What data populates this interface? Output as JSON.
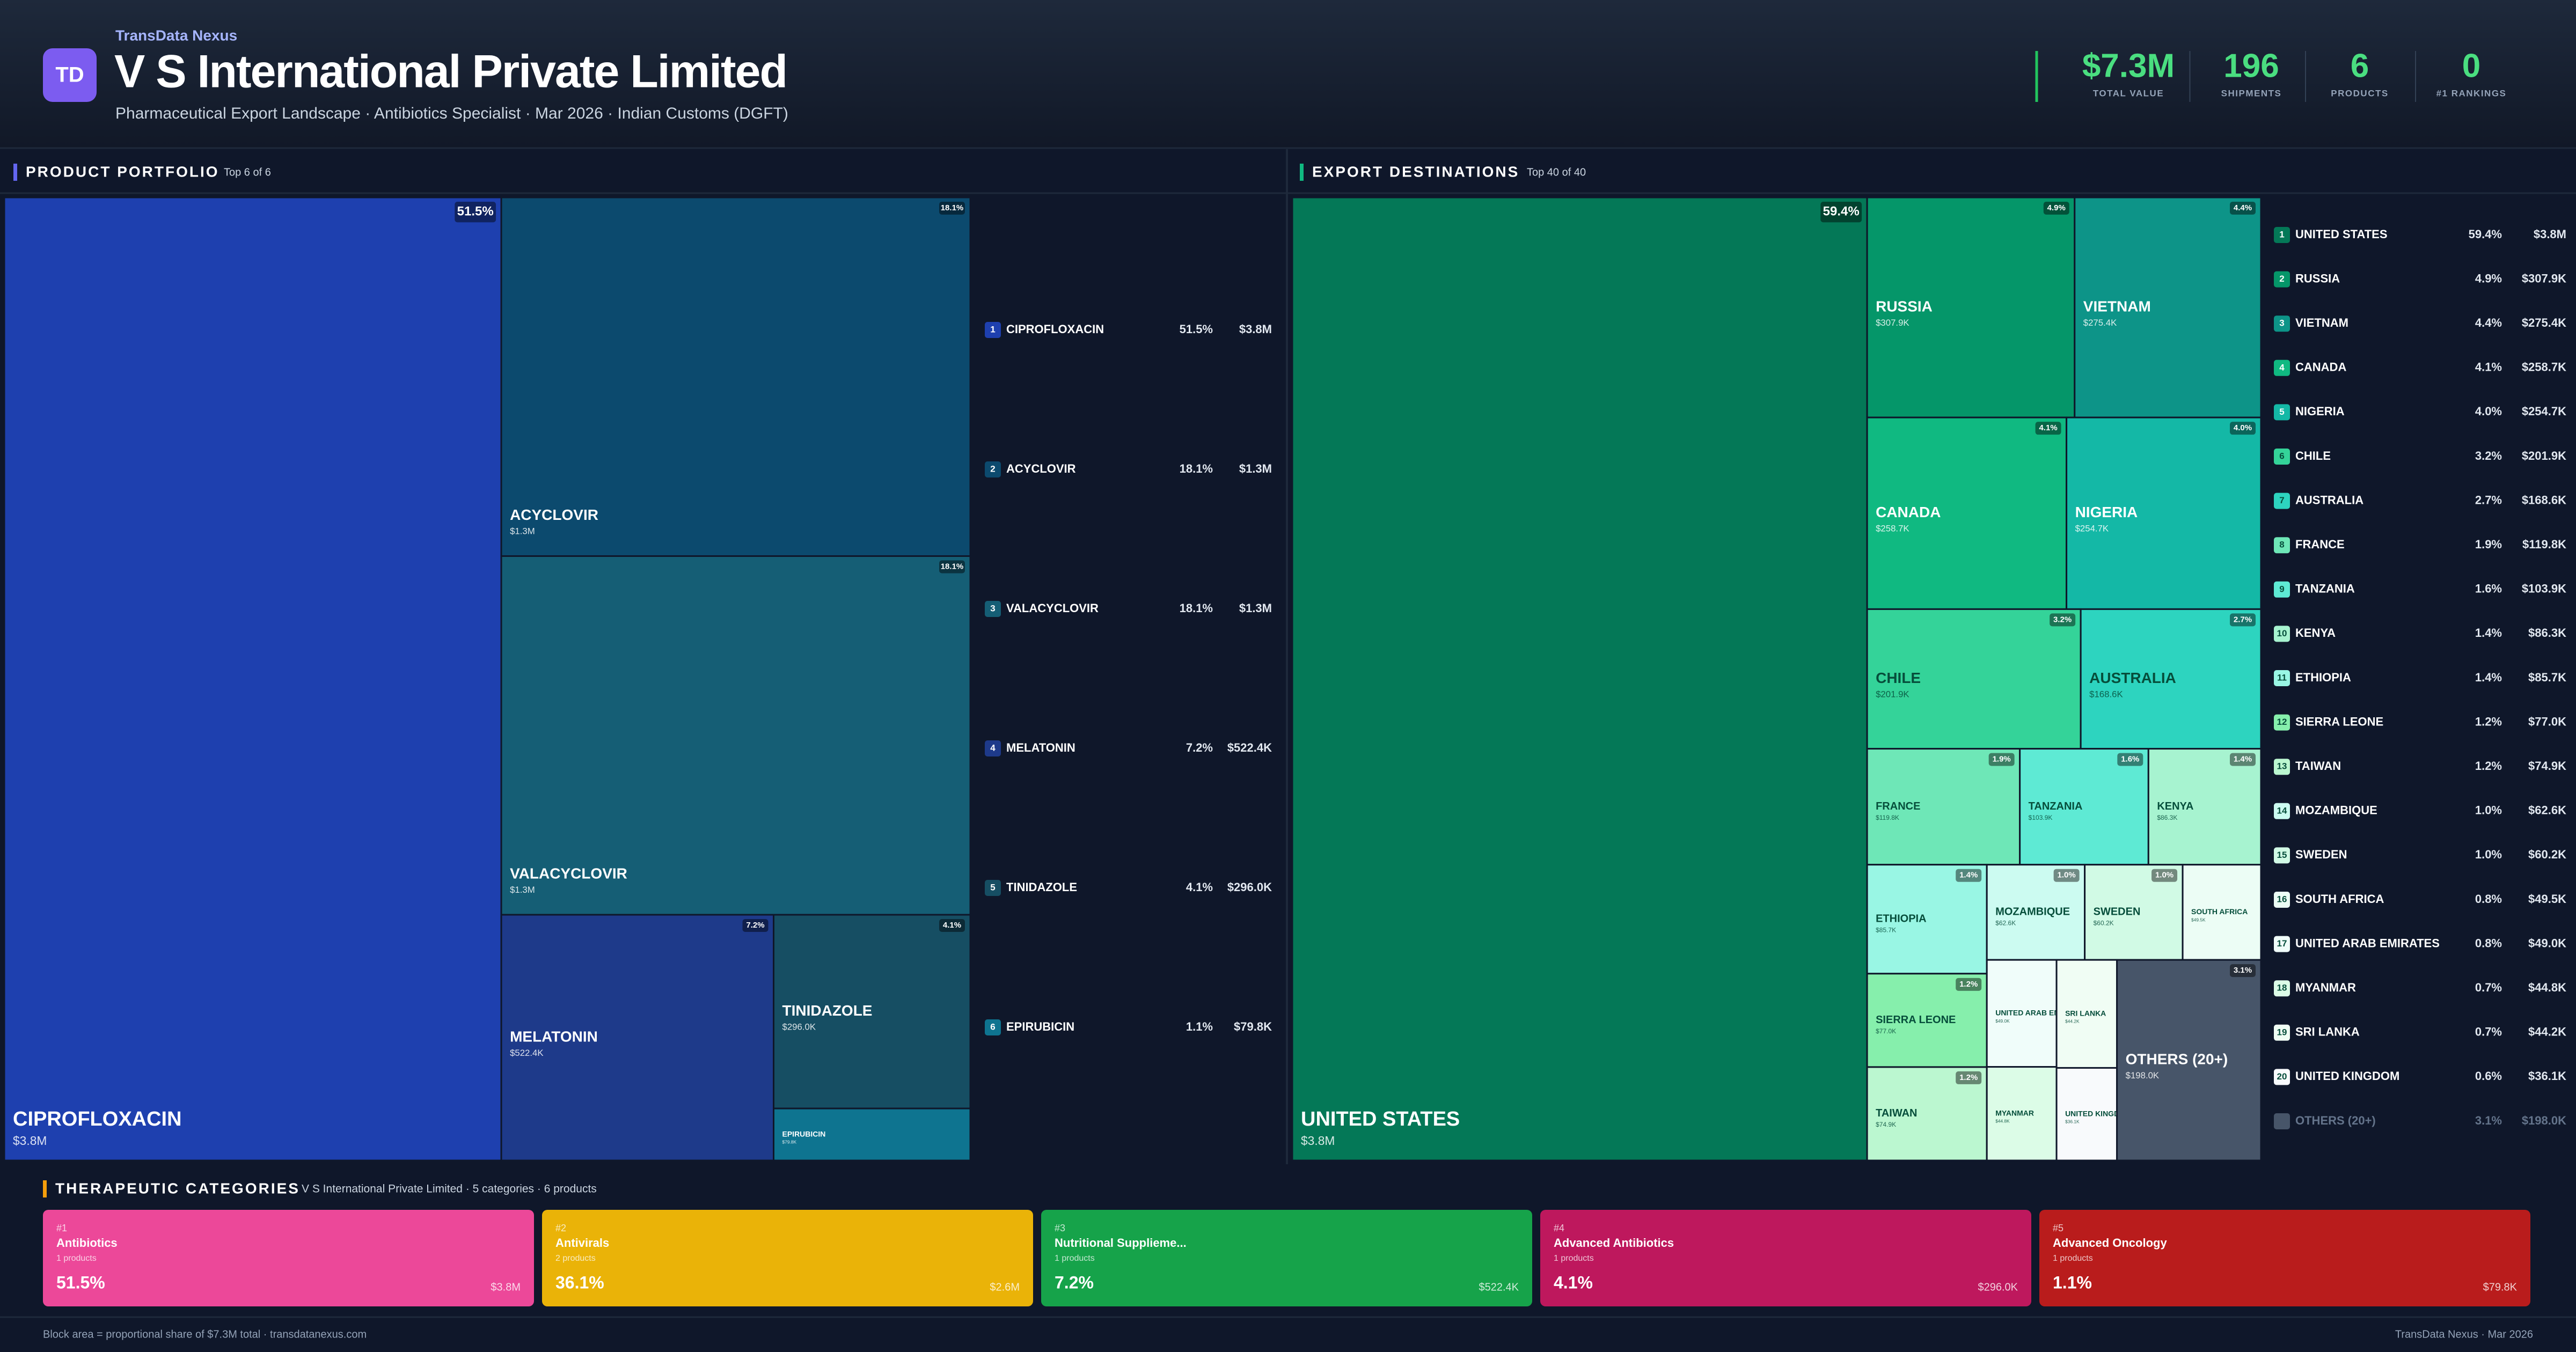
{
  "header": {
    "brand": "TransData Nexus",
    "logo": "TD",
    "title": "V S International Private Limited",
    "subtitle": "Pharmaceutical Export Landscape · Antibiotics Specialist · Mar 2026 · Indian Customs (DGFT)"
  },
  "kpis": [
    {
      "value": "$7.3M",
      "label": "TOTAL VALUE"
    },
    {
      "value": 196,
      "label": "SHIPMENTS"
    },
    {
      "value": 6,
      "label": "PRODUCTS"
    },
    {
      "value": 0,
      "label": "#1 RANKINGS"
    }
  ],
  "chart_data": [
    {
      "type": "treemap",
      "title": "PRODUCT PORTFOLIO",
      "subtitle": "Top 6 of 6",
      "categories": [
        "CIPROFLOXACIN",
        "ACYCLOVIR",
        "VALACYCLOVIR",
        "MELATONIN",
        "TINIDAZOLE",
        "EPIRUBICIN"
      ],
      "ranks": [
        1,
        2,
        3,
        4,
        5,
        6
      ],
      "values": [
        3800000,
        1300000,
        1300000,
        522400,
        296000,
        79800
      ],
      "value_labels": [
        "$3.8M",
        "$1.3M",
        "$1.3M",
        "$522.4K",
        "$296.0K",
        "$79.8K"
      ],
      "shares": [
        51.5,
        18.1,
        18.1,
        7.2,
        4.1,
        1.1
      ],
      "share_labels": [
        "51.5%",
        "18.1%",
        "18.1%",
        "7.2%",
        "4.1%",
        "1.1%"
      ],
      "colors": [
        "#1e40af",
        "#0c4a6e",
        "#155e75",
        "#1e3a8a",
        "#164e63",
        "#0e7490"
      ],
      "accent": "#6366f1"
    },
    {
      "type": "treemap",
      "title": "EXPORT DESTINATIONS",
      "subtitle": "Top 40 of 40",
      "categories": [
        "UNITED STATES",
        "RUSSIA",
        "VIETNAM",
        "CANADA",
        "NIGERIA",
        "CHILE",
        "AUSTRALIA",
        "FRANCE",
        "TANZANIA",
        "KENYA",
        "ETHIOPIA",
        "SIERRA LEONE",
        "TAIWAN",
        "MOZAMBIQUE",
        "SWEDEN",
        "SOUTH AFRICA",
        "UNITED ARAB EMIRATES",
        "MYANMAR",
        "SRI LANKA",
        "UNITED KINGDOM",
        "OTHERS (20+)"
      ],
      "ranks": [
        1,
        2,
        3,
        4,
        5,
        6,
        7,
        8,
        9,
        10,
        11,
        12,
        13,
        14,
        15,
        16,
        17,
        18,
        19,
        20,
        null
      ],
      "values": [
        3800000,
        307900,
        275400,
        258700,
        254700,
        201900,
        168600,
        119800,
        103900,
        86300,
        85700,
        77000,
        74900,
        62600,
        60200,
        49500,
        49000,
        44800,
        44200,
        36100,
        198000
      ],
      "value_labels": [
        "$3.8M",
        "$307.9K",
        "$275.4K",
        "$258.7K",
        "$254.7K",
        "$201.9K",
        "$168.6K",
        "$119.8K",
        "$103.9K",
        "$86.3K",
        "$85.7K",
        "$77.0K",
        "$74.9K",
        "$62.6K",
        "$60.2K",
        "$49.5K",
        "$49.0K",
        "$44.8K",
        "$44.2K",
        "$36.1K",
        "$198.0K"
      ],
      "shares": [
        59.4,
        4.9,
        4.4,
        4.1,
        4.0,
        3.2,
        2.7,
        1.9,
        1.6,
        1.4,
        1.4,
        1.2,
        1.2,
        1.0,
        1.0,
        0.8,
        0.8,
        0.7,
        0.7,
        0.6,
        3.1
      ],
      "share_labels": [
        "59.4%",
        "4.9%",
        "4.4%",
        "4.1%",
        "4.0%",
        "3.2%",
        "2.7%",
        "1.9%",
        "1.6%",
        "1.4%",
        "1.4%",
        "1.2%",
        "1.2%",
        "1.0%",
        "1.0%",
        "0.8%",
        "0.8%",
        "0.7%",
        "0.7%",
        "0.6%",
        "3.1%"
      ],
      "colors": [
        "#047857",
        "#059669",
        "#0d9488",
        "#10b981",
        "#14b8a6",
        "#34d399",
        "#2dd4bf",
        "#6ee7b7",
        "#5eead4",
        "#a7f3d0",
        "#99f6e4",
        "#86efac",
        "#bbf7d0",
        "#ccfbf1",
        "#d1fae5",
        "#ecfdf5",
        "#f0fdfa",
        "#dcfce7",
        "#f0fdf4",
        "#f8fafc",
        "#475569"
      ],
      "accent": "#10b981"
    }
  ],
  "categories_panel": {
    "title": "THERAPEUTIC CATEGORIES",
    "subtitle": "V S International Private Limited · 5 categories · 6 products",
    "cards": [
      {
        "rank": "#1",
        "name": "Antibiotics",
        "count": "1 products",
        "share": "51.5%",
        "value": "$3.8M",
        "color": "#ec4899"
      },
      {
        "rank": "#2",
        "name": "Antivirals",
        "count": "2 products",
        "share": "36.1%",
        "value": "$2.6M",
        "color": "#eab308"
      },
      {
        "rank": "#3",
        "name": "Nutritional Supplieme...",
        "count": "1 products",
        "share": "7.2%",
        "value": "$522.4K",
        "color": "#16a34a"
      },
      {
        "rank": "#4",
        "name": "Advanced Antibiotics",
        "count": "1 products",
        "share": "4.1%",
        "value": "$296.0K",
        "color": "#be185d"
      },
      {
        "rank": "#5",
        "name": "Advanced Oncology",
        "count": "1 products",
        "share": "1.1%",
        "value": "$79.8K",
        "color": "#b91c1c"
      }
    ]
  },
  "footer": {
    "left": "Block area = proportional share of $7.3M total · transdatanexus.com",
    "right": "TransData Nexus · Mar 2026"
  }
}
